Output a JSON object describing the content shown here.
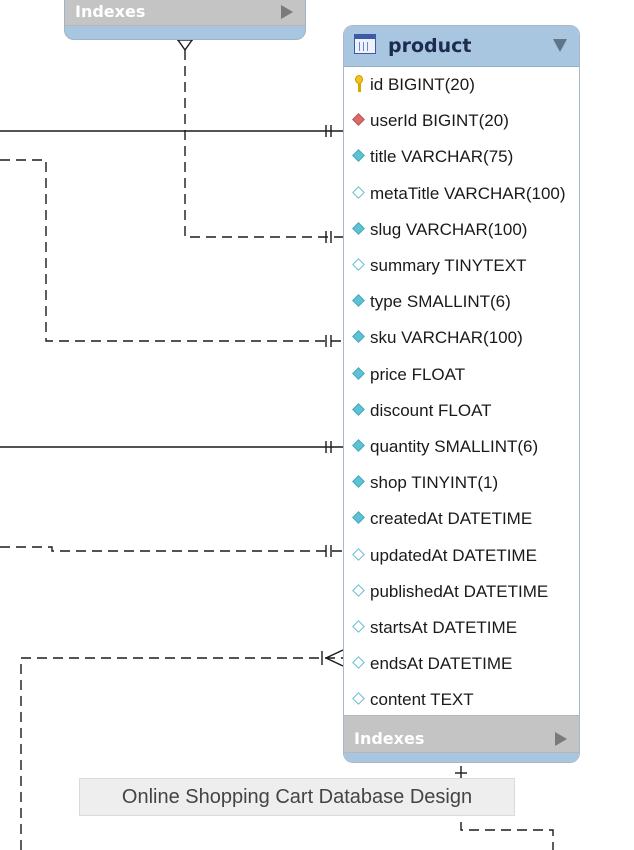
{
  "top_table": {
    "indexes_label": "Indexes"
  },
  "product_table": {
    "title": "product",
    "columns": [
      {
        "label": "id BIGINT(20)",
        "marker": "primary-key"
      },
      {
        "label": "userId BIGINT(20)",
        "marker": "foreign-key"
      },
      {
        "label": "title VARCHAR(75)",
        "marker": "not-null"
      },
      {
        "label": "metaTitle VARCHAR(100)",
        "marker": "nullable"
      },
      {
        "label": "slug VARCHAR(100)",
        "marker": "not-null"
      },
      {
        "label": "summary TINYTEXT",
        "marker": "nullable"
      },
      {
        "label": "type SMALLINT(6)",
        "marker": "not-null"
      },
      {
        "label": "sku VARCHAR(100)",
        "marker": "not-null"
      },
      {
        "label": "price FLOAT",
        "marker": "not-null"
      },
      {
        "label": "discount FLOAT",
        "marker": "not-null"
      },
      {
        "label": "quantity SMALLINT(6)",
        "marker": "not-null"
      },
      {
        "label": "shop TINYINT(1)",
        "marker": "not-null"
      },
      {
        "label": "createdAt DATETIME",
        "marker": "not-null"
      },
      {
        "label": "updatedAt DATETIME",
        "marker": "nullable"
      },
      {
        "label": "publishedAt DATETIME",
        "marker": "nullable"
      },
      {
        "label": "startsAt DATETIME",
        "marker": "nullable"
      },
      {
        "label": "endsAt DATETIME",
        "marker": "nullable"
      },
      {
        "label": "content TEXT",
        "marker": "nullable"
      }
    ],
    "indexes_label": "Indexes"
  },
  "caption": "Online Shopping Cart Database Design",
  "colors": {
    "header_blue": "#a9c6e0",
    "indexes_gray": "#c4c4c4",
    "not_null_diamond": "#5cc3d4",
    "foreign_key_diamond": "#d86b6b",
    "primary_key": "#f2c318"
  }
}
